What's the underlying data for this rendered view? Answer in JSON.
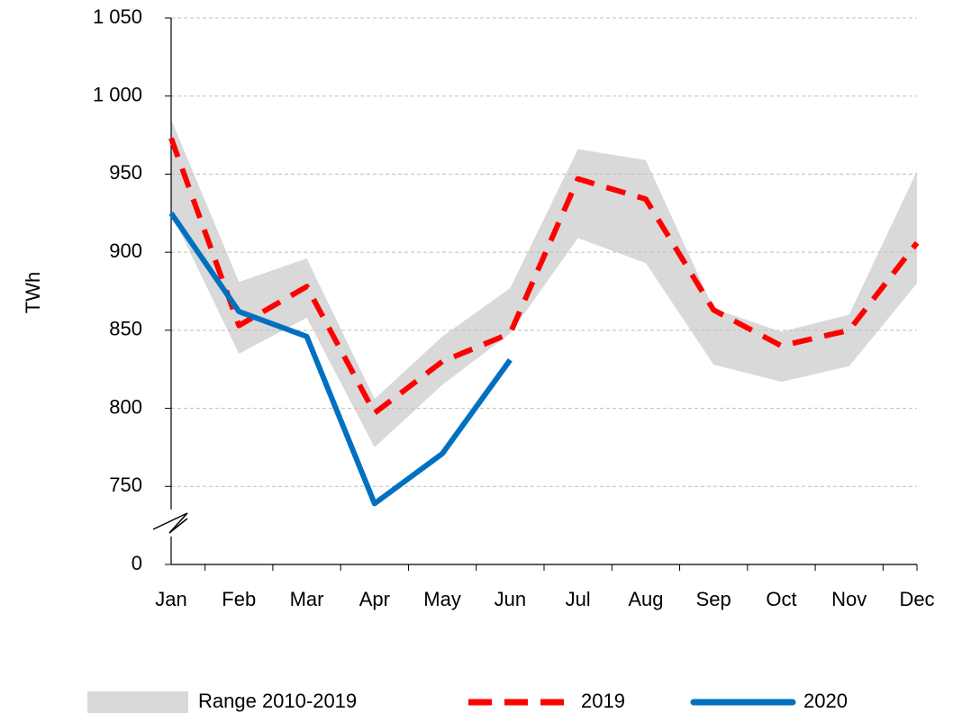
{
  "chart_data": {
    "type": "line",
    "y_label": "TWh",
    "categories": [
      "Jan",
      "Feb",
      "Mar",
      "Apr",
      "May",
      "Jun",
      "Jul",
      "Aug",
      "Sep",
      "Oct",
      "Nov",
      "Dec"
    ],
    "ylim": [
      700,
      1050
    ],
    "axis_break": true,
    "yticks": [
      0,
      750,
      800,
      850,
      900,
      950,
      {
        "value": 1000,
        "label": "1 000"
      },
      {
        "value": 1050,
        "label": "1 050"
      }
    ],
    "grid": true,
    "range": {
      "name": "Range 2010-2019",
      "color": "#d9d9d9",
      "low": [
        925,
        835,
        858,
        775,
        815,
        848,
        909,
        893,
        828,
        817,
        827,
        880
      ],
      "high": [
        985,
        881,
        896,
        806,
        846,
        877,
        966,
        959,
        864,
        849,
        860,
        952
      ]
    },
    "series": [
      {
        "name": "2019",
        "color": "#ff0000",
        "dash": true,
        "values": [
          973,
          853,
          878,
          797,
          830,
          848,
          947,
          934,
          863,
          840,
          850,
          906
        ]
      },
      {
        "name": "2020",
        "color": "#0070c0",
        "dash": false,
        "values": [
          925,
          862,
          846,
          739,
          771,
          831,
          null,
          null,
          null,
          null,
          null,
          null
        ]
      }
    ],
    "legend": "bottom"
  }
}
